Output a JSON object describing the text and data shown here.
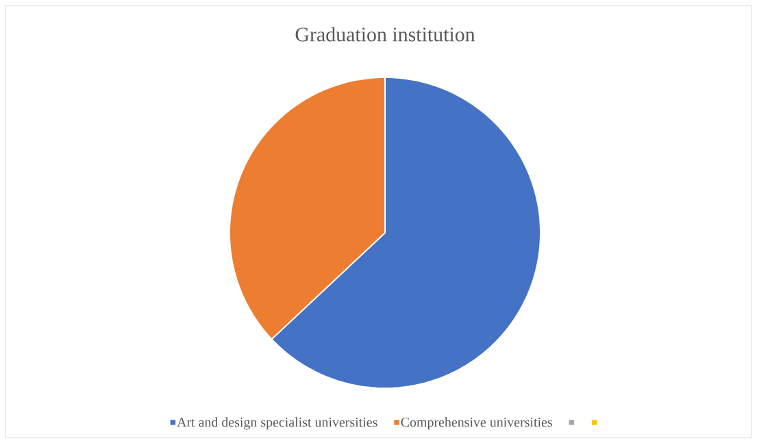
{
  "chart_data": {
    "type": "pie",
    "title": "Graduation institution",
    "categories": [
      "Art and design specialist universities",
      "Comprehensive universities",
      null,
      null
    ],
    "values": [
      63,
      37,
      0,
      0
    ],
    "colors": [
      "#4472c4",
      "#ed7d31",
      "#a5a5a5",
      "#ffc000"
    ],
    "legend": "bottom"
  }
}
